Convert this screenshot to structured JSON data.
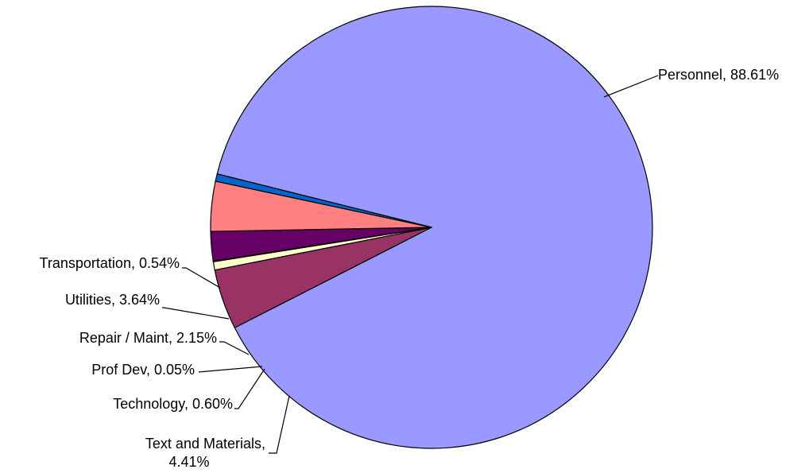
{
  "chart_data": {
    "type": "pie",
    "title": "",
    "slices": [
      {
        "name": "Personnel",
        "value": 88.61,
        "label": "Personnel, 88.61%",
        "color": "#9999ff"
      },
      {
        "name": "Text and Materials",
        "value": 4.41,
        "label_lines": [
          "Text and Materials,",
          "4.41%"
        ],
        "color": "#993366"
      },
      {
        "name": "Technology",
        "value": 0.6,
        "label": "Technology, 0.60%",
        "color": "#ffffcc"
      },
      {
        "name": "Prof Dev",
        "value": 0.05,
        "label": "Prof Dev, 0.05%",
        "color": "#ccffff"
      },
      {
        "name": "Repair / Maint",
        "value": 2.15,
        "label": "Repair / Maint, 2.15%",
        "color": "#660066"
      },
      {
        "name": "Utilities",
        "value": 3.64,
        "label": "Utilities, 3.64%",
        "color": "#ff8080"
      },
      {
        "name": "Transportation",
        "value": 0.54,
        "label": "Transportation, 0.54%",
        "color": "#0066cc"
      }
    ],
    "legend": "none",
    "labels": "outside with leader lines"
  }
}
